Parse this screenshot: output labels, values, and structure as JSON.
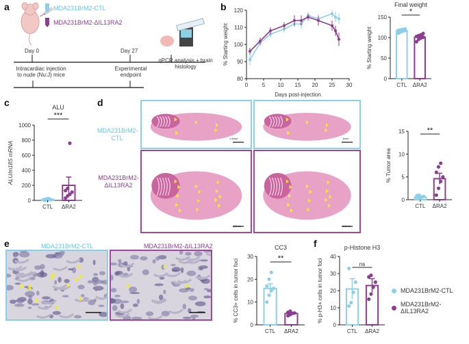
{
  "colors": {
    "ctl": "#8ecfe8",
    "ra2": "#8b3d8f",
    "ra2_border": "#a0479d",
    "ctl_border": "#8ecfe8",
    "tumor": "#f5ea2a"
  },
  "panel_a": {
    "label": "a",
    "ctl_name": "MDA231BrM2-CTL",
    "ra2_name": "MDA231BrM2-ΔIL13RA2",
    "day0": "Day 0",
    "day27": "Day 27",
    "step1": "Intracardiac injection to nude (Nu:J) mice",
    "step2": "Experimental endpoint",
    "step3": "qPCR analysis + brain histology"
  },
  "panel_b": {
    "label": "b"
  },
  "panel_c": {
    "label": "c"
  },
  "panel_d": {
    "label": "d",
    "ctl_label": "MDA231BrM2-CTL",
    "ra2_label": "MDA231BrM2-ΔIL13RA2",
    "scale_bars": [
      "1.5mm",
      "1mm",
      "1.5mm",
      "1.5mm"
    ]
  },
  "panel_e": {
    "label": "e",
    "ctl_title": "MDA231BrM2-CTL",
    "ra2_title": "MDA231BrM2-ΔIL13RA2"
  },
  "panel_f": {
    "label": "f"
  },
  "legend": {
    "ctl": "MDA231BrM2-CTL",
    "ra2": "MDA231BrM2-ΔIL13RA2"
  },
  "chart_data": [
    {
      "id": "weight_curve",
      "type": "line",
      "xlabel": "Days post-injection",
      "ylabel": "% Starting weight",
      "xlim": [
        0,
        30
      ],
      "ylim": [
        80,
        120
      ],
      "xticks": [
        0,
        5,
        10,
        15,
        20,
        25,
        30
      ],
      "yticks": [
        80,
        90,
        100,
        110,
        120
      ],
      "series": [
        {
          "name": "MDA231BrM2-CTL",
          "x": [
            1,
            4,
            7,
            11,
            14,
            16,
            18,
            21,
            25,
            26,
            27
          ],
          "y": [
            91,
            101,
            106,
            109,
            112,
            112,
            117,
            115,
            118,
            116,
            115
          ],
          "err": [
            3,
            2,
            2,
            2,
            2,
            3,
            2,
            2,
            2,
            3,
            3
          ]
        },
        {
          "name": "MDA231BrM2-ΔIL13RA2",
          "x": [
            1,
            4,
            7,
            11,
            14,
            16,
            18,
            21,
            25,
            26,
            27
          ],
          "y": [
            96,
            102,
            108,
            111,
            114,
            114,
            116,
            114,
            111,
            108,
            103
          ],
          "err": [
            2,
            2,
            2,
            2,
            3,
            3,
            2,
            3,
            3,
            3,
            4
          ]
        }
      ]
    },
    {
      "id": "final_weight",
      "type": "bar",
      "title": "Final weight",
      "ylabel": "% Starting weight",
      "categories": [
        "CTL",
        "ΔRA2"
      ],
      "values": [
        117,
        101
      ],
      "err": [
        2,
        4
      ],
      "ylim": [
        0,
        150
      ],
      "yticks": [
        0,
        50,
        100,
        150
      ],
      "points": [
        [
          111,
          114,
          116,
          117,
          118,
          119,
          120,
          121
        ],
        [
          90,
          96,
          99,
          101,
          103,
          105,
          107,
          110
        ]
      ],
      "significance": "*"
    },
    {
      "id": "alu",
      "type": "bar",
      "title": "ALU",
      "ylabel": "ALU/m18S mRNA",
      "categories": [
        "CTL",
        "ΔRA2"
      ],
      "values": [
        12,
        200
      ],
      "err": [
        4,
        110
      ],
      "ylim": [
        0,
        1000
      ],
      "yticks": [
        0,
        200,
        400,
        600,
        800,
        1000
      ],
      "points": [
        [
          2,
          5,
          8,
          10,
          14,
          20,
          25
        ],
        [
          30,
          60,
          80,
          110,
          130,
          160,
          760
        ]
      ],
      "significance": "***"
    },
    {
      "id": "tumor_area",
      "type": "bar",
      "ylabel": "% Tumor area",
      "categories": [
        "CTL",
        "ΔRA2"
      ],
      "values": [
        0.6,
        4.6
      ],
      "err": [
        0.2,
        1.2
      ],
      "ylim": [
        0,
        15
      ],
      "yticks": [
        0,
        5,
        10,
        15
      ],
      "points": [
        [
          0.2,
          0.4,
          0.5,
          0.7,
          0.9,
          1.0
        ],
        [
          1.0,
          2.5,
          4.0,
          5.0,
          6.0,
          7.2,
          8.0
        ]
      ],
      "significance": "**"
    },
    {
      "id": "cc3",
      "type": "bar",
      "title": "CC3",
      "ylabel": "% CC3+ cells in tumor foci",
      "categories": [
        "CTL",
        "ΔRA2"
      ],
      "values": [
        16,
        5
      ],
      "err": [
        2,
        0.6
      ],
      "ylim": [
        0,
        30
      ],
      "yticks": [
        0,
        10,
        20,
        30
      ],
      "points": [
        [
          10,
          13,
          15,
          16,
          17,
          20,
          23
        ],
        [
          4,
          4.5,
          5,
          5.2,
          5.5,
          6
        ]
      ],
      "significance": "**"
    },
    {
      "id": "ph3",
      "type": "bar",
      "title": "p-Histone H3",
      "ylabel": "% p-H3+ cells in tumor foci",
      "categories": [
        "CTL",
        "ΔRA2"
      ],
      "values": [
        21,
        23
      ],
      "err": [
        6,
        4
      ],
      "ylim": [
        0,
        40
      ],
      "yticks": [
        0,
        10,
        20,
        30,
        40
      ],
      "points": [
        [
          11,
          13,
          19,
          25,
          33
        ],
        [
          15,
          18,
          22,
          25,
          28,
          29
        ]
      ],
      "significance": "ns"
    }
  ]
}
